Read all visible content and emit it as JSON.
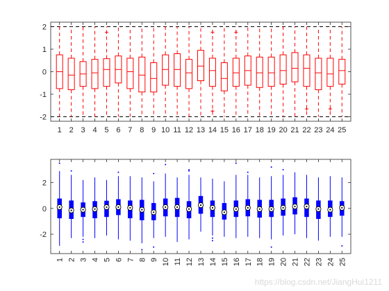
{
  "chart_data": [
    {
      "type": "box",
      "style": "traditional",
      "color": "#ff0000",
      "categories": [
        "1",
        "2",
        "3",
        "4",
        "5",
        "6",
        "7",
        "8",
        "9",
        "10",
        "11",
        "12",
        "13",
        "14",
        "15",
        "16",
        "17",
        "18",
        "19",
        "20",
        "21",
        "22",
        "23",
        "24",
        "25"
      ],
      "ylim": [
        -2.2,
        2.2
      ],
      "yticks": [
        -2,
        -1,
        0,
        1,
        2
      ],
      "whisker_bounds": [
        -2,
        2
      ],
      "boxes": [
        {
          "q1": -0.75,
          "median": 0.0,
          "q3": 0.75
        },
        {
          "q1": -0.8,
          "median": -0.15,
          "q3": 0.6
        },
        {
          "q1": -0.65,
          "median": -0.1,
          "q3": 0.45
        },
        {
          "q1": -0.75,
          "median": -0.05,
          "q3": 0.55
        },
        {
          "q1": -0.65,
          "median": 0.1,
          "q3": 0.58
        },
        {
          "q1": -0.5,
          "median": 0.1,
          "q3": 0.7
        },
        {
          "q1": -0.75,
          "median": 0.0,
          "q3": 0.6
        },
        {
          "q1": -0.9,
          "median": -0.15,
          "q3": 0.65
        },
        {
          "q1": -0.9,
          "median": -0.3,
          "q3": 0.4
        },
        {
          "q1": -0.6,
          "median": 0.1,
          "q3": 0.75
        },
        {
          "q1": -0.65,
          "median": 0.1,
          "q3": 0.8
        },
        {
          "q1": -0.75,
          "median": -0.05,
          "q3": 0.55
        },
        {
          "q1": -0.4,
          "median": 0.25,
          "q3": 0.95
        },
        {
          "q1": -0.65,
          "median": 0.05,
          "q3": 0.6
        },
        {
          "q1": -0.85,
          "median": -0.3,
          "q3": 0.4
        },
        {
          "q1": -0.65,
          "median": -0.05,
          "q3": 0.6
        },
        {
          "q1": -0.6,
          "median": 0.05,
          "q3": 0.7
        },
        {
          "q1": -0.7,
          "median": -0.05,
          "q3": 0.65
        },
        {
          "q1": -0.65,
          "median": -0.05,
          "q3": 0.65
        },
        {
          "q1": -0.55,
          "median": 0.05,
          "q3": 0.75
        },
        {
          "q1": -0.45,
          "median": 0.15,
          "q3": 0.85
        },
        {
          "q1": -0.65,
          "median": 0.15,
          "q3": 0.75
        },
        {
          "q1": -0.8,
          "median": -0.05,
          "q3": 0.6
        },
        {
          "q1": -0.65,
          "median": -0.1,
          "q3": 0.6
        },
        {
          "q1": -0.55,
          "median": 0.05,
          "q3": 0.55
        }
      ],
      "outliers": [
        {
          "category": "5",
          "value": 1.75
        },
        {
          "category": "14",
          "value": -1.75
        },
        {
          "category": "14",
          "value": 1.75
        },
        {
          "category": "16",
          "value": 1.75
        },
        {
          "category": "22",
          "value": -1.65
        },
        {
          "category": "24",
          "value": -1.65
        }
      ]
    },
    {
      "type": "box",
      "style": "compact",
      "color": "#0000ff",
      "categories": [
        "1",
        "2",
        "3",
        "4",
        "5",
        "6",
        "7",
        "8",
        "9",
        "10",
        "11",
        "12",
        "13",
        "14",
        "15",
        "16",
        "17",
        "18",
        "19",
        "20",
        "21",
        "22",
        "23",
        "24",
        "25"
      ],
      "ylim": [
        -3.5,
        3.8
      ],
      "yticks": [
        -2,
        0,
        2
      ],
      "xtick_rotation": 90,
      "boxes": [
        {
          "min": -2.9,
          "q1": -0.75,
          "median": 0.1,
          "q3": 0.75,
          "max": 2.9
        },
        {
          "min": -2.3,
          "q1": -0.8,
          "median": -0.15,
          "q3": 0.6,
          "max": 2.6
        },
        {
          "min": -2.2,
          "q1": -0.65,
          "median": -0.1,
          "q3": 0.45,
          "max": 2.2
        },
        {
          "min": -2.3,
          "q1": -0.75,
          "median": -0.05,
          "q3": 0.55,
          "max": 2.4
        },
        {
          "min": -2.1,
          "q1": -0.65,
          "median": 0.1,
          "q3": 0.58,
          "max": 2.2
        },
        {
          "min": -2.4,
          "q1": -0.5,
          "median": 0.1,
          "q3": 0.7,
          "max": 2.5
        },
        {
          "min": -2.5,
          "q1": -0.75,
          "median": 0.05,
          "q3": 0.6,
          "max": 2.5
        },
        {
          "min": -2.7,
          "q1": -0.9,
          "median": -0.1,
          "q3": 0.65,
          "max": 2.4
        },
        {
          "min": -2.3,
          "q1": -0.9,
          "median": -0.3,
          "q3": 0.4,
          "max": 2.1
        },
        {
          "min": -2.2,
          "q1": -0.6,
          "median": 0.1,
          "q3": 0.75,
          "max": 2.7
        },
        {
          "min": -2.6,
          "q1": -0.65,
          "median": 0.1,
          "q3": 0.8,
          "max": 2.4
        },
        {
          "min": -2.4,
          "q1": -0.75,
          "median": -0.05,
          "q3": 0.55,
          "max": 2.6
        },
        {
          "min": -1.8,
          "q1": -0.4,
          "median": 0.25,
          "q3": 0.95,
          "max": 2.4
        },
        {
          "min": -2.1,
          "q1": -0.65,
          "median": 0.05,
          "q3": 0.6,
          "max": 2.3
        },
        {
          "min": -2.2,
          "q1": -0.85,
          "median": -0.3,
          "q3": 0.4,
          "max": 2.1
        },
        {
          "min": -2.3,
          "q1": -0.65,
          "median": -0.05,
          "q3": 0.6,
          "max": 2.6
        },
        {
          "min": -2.2,
          "q1": -0.6,
          "median": 0.05,
          "q3": 0.7,
          "max": 2.6
        },
        {
          "min": -2.3,
          "q1": -0.7,
          "median": -0.05,
          "q3": 0.65,
          "max": 2.4
        },
        {
          "min": -2.4,
          "q1": -0.65,
          "median": -0.05,
          "q3": 0.65,
          "max": 2.5
        },
        {
          "min": -2.1,
          "q1": -0.55,
          "median": 0.05,
          "q3": 0.75,
          "max": 2.6
        },
        {
          "min": -2.0,
          "q1": -0.45,
          "median": 0.15,
          "q3": 0.85,
          "max": 2.8
        },
        {
          "min": -2.3,
          "q1": -0.65,
          "median": 0.15,
          "q3": 0.75,
          "max": 2.6
        },
        {
          "min": -2.5,
          "q1": -0.8,
          "median": -0.05,
          "q3": 0.6,
          "max": 2.4
        },
        {
          "min": -2.2,
          "q1": -0.65,
          "median": -0.1,
          "q3": 0.6,
          "max": 2.5
        },
        {
          "min": -2.2,
          "q1": -0.55,
          "median": 0.05,
          "q3": 0.55,
          "max": 2.4
        }
      ],
      "outliers": [
        {
          "category": "1",
          "value": 3.5
        },
        {
          "category": "2",
          "value": 2.9
        },
        {
          "category": "3",
          "value": -2.4
        },
        {
          "category": "3",
          "value": -2.6
        },
        {
          "category": "6",
          "value": 2.8
        },
        {
          "category": "8",
          "value": -3.2
        },
        {
          "category": "9",
          "value": 2.7
        },
        {
          "category": "9",
          "value": -3.0
        },
        {
          "category": "10",
          "value": 3.4
        },
        {
          "category": "12",
          "value": 2.9
        },
        {
          "category": "12",
          "value": 3.0
        },
        {
          "category": "14",
          "value": -2.3
        },
        {
          "category": "14",
          "value": -2.5
        },
        {
          "category": "16",
          "value": 3.5
        },
        {
          "category": "17",
          "value": 2.8
        },
        {
          "category": "19",
          "value": 3.2
        },
        {
          "category": "19",
          "value": -3.0
        },
        {
          "category": "20",
          "value": 3.0
        },
        {
          "category": "25",
          "value": -2.9
        }
      ]
    }
  ],
  "watermark": "https://blog.csdn.net/JiangHui1211"
}
